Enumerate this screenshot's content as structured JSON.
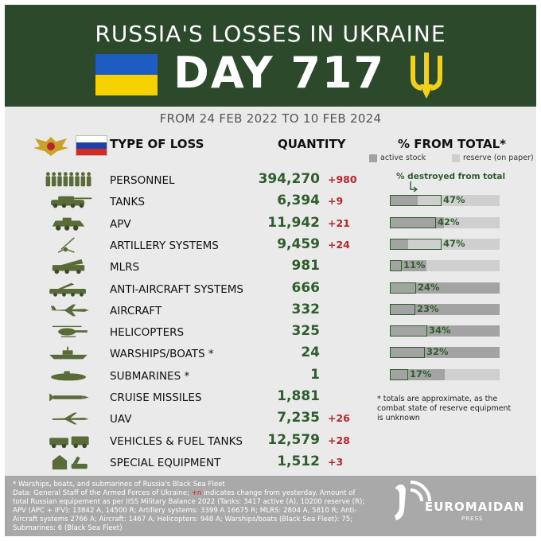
{
  "header": {
    "title": "RUSSIA'S LOSSES IN UKRAINE",
    "day": "DAY 717",
    "period": "FROM 24 FEB 2022 TO 10 FEB 2024"
  },
  "columns": {
    "type": "TYPE OF LOSS",
    "quantity": "QUANTITY",
    "percent": "% FROM TOTAL*"
  },
  "legend": {
    "active": "active stock",
    "reserve": "reserve (on paper)",
    "destroyed": "% destroyed from total"
  },
  "colors": {
    "header_bg": "#2c4a2b",
    "qty_green": "#2f5d2d",
    "change_red": "#b8262b",
    "active_gray": "#a3a3a3",
    "reserve_gray": "#cfcfcf",
    "ukraine_blue": "#1f5cc1",
    "ukraine_yellow": "#f6d100"
  },
  "chart_data": {
    "type": "table",
    "rows": [
      {
        "name": "PERSONNEL",
        "icon": "soldiers-icon",
        "quantity": "394,270",
        "change": "+980"
      },
      {
        "name": "TANKS",
        "icon": "tank-icon",
        "quantity": "6,394",
        "change": "+9",
        "active_pct": 25,
        "destroyed_pct": 47,
        "pct_label": "47%"
      },
      {
        "name": "APV",
        "icon": "apv-icon",
        "quantity": "11,942",
        "change": "+21",
        "active_pct": 49,
        "destroyed_pct": 42,
        "pct_label": "42%"
      },
      {
        "name": "ARTILLERY SYSTEMS",
        "icon": "artillery-icon",
        "quantity": "9,459",
        "change": "+24",
        "active_pct": 17,
        "destroyed_pct": 47,
        "pct_label": "47%"
      },
      {
        "name": "MLRS",
        "icon": "mlrs-icon",
        "quantity": "981",
        "change": "",
        "active_pct": 33,
        "destroyed_pct": 11,
        "pct_label": "11%"
      },
      {
        "name": "ANTI-AIRCRAFT SYSTEMS",
        "icon": "anti-aircraft-icon",
        "quantity": "666",
        "change": "",
        "active_pct": 100,
        "destroyed_pct": 24,
        "pct_label": "24%"
      },
      {
        "name": "AIRCRAFT",
        "icon": "aircraft-icon",
        "quantity": "332",
        "change": "",
        "active_pct": 100,
        "destroyed_pct": 23,
        "pct_label": "23%"
      },
      {
        "name": "HELICOPTERS",
        "icon": "helicopter-icon",
        "quantity": "325",
        "change": "",
        "active_pct": 100,
        "destroyed_pct": 34,
        "pct_label": "34%"
      },
      {
        "name": "WARSHIPS/BOATS *",
        "icon": "warship-icon",
        "quantity": "24",
        "change": "",
        "active_pct": 100,
        "destroyed_pct": 32,
        "pct_label": "32%"
      },
      {
        "name": "SUBMARINES *",
        "icon": "submarine-icon",
        "quantity": "1",
        "change": "",
        "active_pct": 50,
        "destroyed_pct": 17,
        "pct_label": "17%"
      },
      {
        "name": "CRUISE MISSILES",
        "icon": "missile-icon",
        "quantity": "1,881",
        "change": ""
      },
      {
        "name": "UAV",
        "icon": "uav-icon",
        "quantity": "7,235",
        "change": "+26"
      },
      {
        "name": "VEHICLES & FUEL TANKS",
        "icon": "vehicles-icon",
        "quantity": "12,579",
        "change": "+28"
      },
      {
        "name": "SPECIAL EQUIPMENT",
        "icon": "special-equipment-icon",
        "quantity": "1,512",
        "change": "+3"
      }
    ]
  },
  "note": "* totals are approximate, as the combat state of reserve equipment is unknown",
  "footer": {
    "line1": "* Warships, boats, and submarines of Russia's Black Sea Fleet",
    "line2a": "Data: General Staff of the Armed Forces of Ukraine; ",
    "line2b": "+n",
    "line2c": " indicates change from yesterday. Amount of total Russian equipement as per IISS Military Balance 2022 (Tanks: 3417 active (A), 10200 reserve (R); APV (APC + IFV): 13842 A, 14500 R; Artillery systems: 3399 A 16675 R; MLRS: 2804 A, 5810 R; Anti-Aircraft systems 2766 A; Aircraft: 1467 A; Helicopters: 948 A; Warships/boats (Black Sea Fleet): 75; Submarines: 6 (Black Sea Fleet)",
    "logo": "EUROMAIDAN",
    "logo_sub": "PRESS"
  }
}
